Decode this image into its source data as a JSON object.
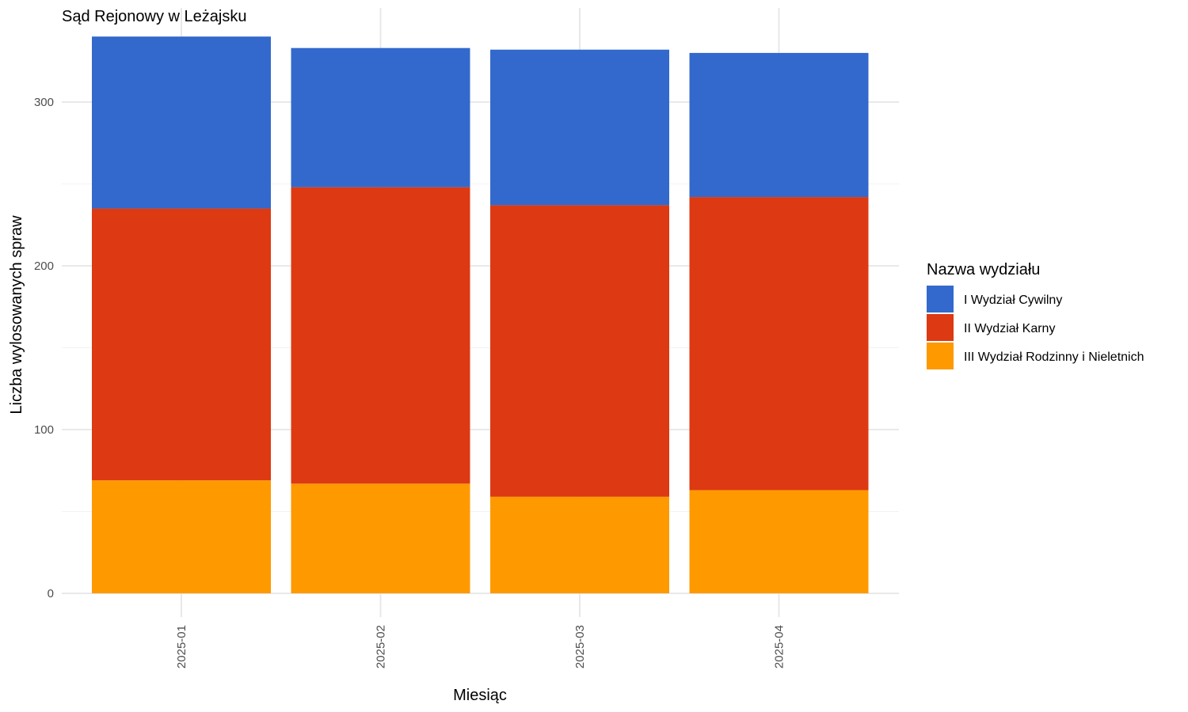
{
  "chart_data": {
    "type": "bar",
    "stacked": true,
    "title": "Sąd Rejonowy w Leżajsku",
    "xlabel": "Miesiąc",
    "ylabel": "Liczba wylosowanych spraw",
    "categories": [
      "2025-01",
      "2025-02",
      "2025-03",
      "2025-04"
    ],
    "ylim": [
      0,
      345
    ],
    "yticks": [
      0,
      100,
      200,
      300
    ],
    "grid": true,
    "legend": {
      "title": "Nazwa wydziału",
      "position": "right"
    },
    "series": [
      {
        "name": "I Wydział Cywilny",
        "color": "#3369CC",
        "values": [
          105,
          85,
          95,
          88
        ]
      },
      {
        "name": "II Wydział Karny",
        "color": "#DD3912",
        "values": [
          166,
          181,
          178,
          179
        ]
      },
      {
        "name": "III Wydział Rodzinny i Nieletnich",
        "color": "#FE9900",
        "values": [
          69,
          67,
          59,
          63
        ]
      }
    ]
  }
}
